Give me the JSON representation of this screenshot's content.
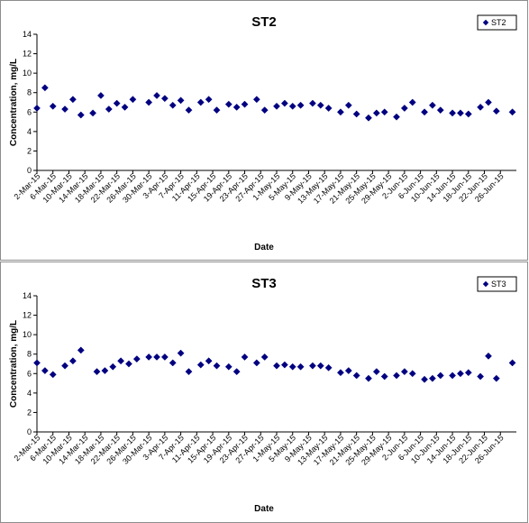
{
  "chart_data": [
    {
      "type": "scatter",
      "title": "ST2",
      "xlabel": "Date",
      "ylabel": "Concentration, mg/L",
      "ylim": [
        0,
        14
      ],
      "yticks": [
        0,
        2,
        4,
        6,
        8,
        10,
        12,
        14
      ],
      "grid": false,
      "legend_position": "top-right",
      "marker_color": "#000080",
      "x_tick_labels": [
        "2-Mar-15",
        "6-Mar-15",
        "10-Mar-15",
        "14-Mar-15",
        "18-Mar-15",
        "22-Mar-15",
        "26-Mar-15",
        "30-Mar-15",
        "3-Apr-15",
        "7-Apr-15",
        "11-Apr-15",
        "15-Apr-15",
        "19-Apr-15",
        "23-Apr-15",
        "27-Apr-15",
        "1-May-15",
        "5-May-15",
        "9-May-15",
        "13-May-15",
        "17-May-15",
        "21-May-15",
        "25-May-15",
        "29-May-15",
        "2-Jun-15",
        "6-Jun-15",
        "10-Jun-15",
        "14-Jun-15",
        "18-Jun-15",
        "22-Jun-15",
        "26-Jun-15"
      ],
      "xlim": [
        "2-Mar-15",
        "30-Jun-15"
      ],
      "series": [
        {
          "name": "ST2",
          "points": [
            {
              "x": "2-Mar-15",
              "y": 6.4
            },
            {
              "x": "4-Mar-15",
              "y": 8.5
            },
            {
              "x": "6-Mar-15",
              "y": 6.6
            },
            {
              "x": "9-Mar-15",
              "y": 6.3
            },
            {
              "x": "11-Mar-15",
              "y": 7.3
            },
            {
              "x": "13-Mar-15",
              "y": 5.7
            },
            {
              "x": "16-Mar-15",
              "y": 5.9
            },
            {
              "x": "18-Mar-15",
              "y": 7.7
            },
            {
              "x": "20-Mar-15",
              "y": 6.3
            },
            {
              "x": "22-Mar-15",
              "y": 6.9
            },
            {
              "x": "24-Mar-15",
              "y": 6.5
            },
            {
              "x": "26-Mar-15",
              "y": 7.3
            },
            {
              "x": "30-Mar-15",
              "y": 7.0
            },
            {
              "x": "1-Apr-15",
              "y": 7.7
            },
            {
              "x": "3-Apr-15",
              "y": 7.4
            },
            {
              "x": "5-Apr-15",
              "y": 6.7
            },
            {
              "x": "7-Apr-15",
              "y": 7.2
            },
            {
              "x": "9-Apr-15",
              "y": 6.2
            },
            {
              "x": "12-Apr-15",
              "y": 7.0
            },
            {
              "x": "14-Apr-15",
              "y": 7.3
            },
            {
              "x": "16-Apr-15",
              "y": 6.2
            },
            {
              "x": "19-Apr-15",
              "y": 6.8
            },
            {
              "x": "21-Apr-15",
              "y": 6.5
            },
            {
              "x": "23-Apr-15",
              "y": 6.8
            },
            {
              "x": "26-Apr-15",
              "y": 7.3
            },
            {
              "x": "28-Apr-15",
              "y": 6.2
            },
            {
              "x": "1-May-15",
              "y": 6.6
            },
            {
              "x": "3-May-15",
              "y": 6.9
            },
            {
              "x": "5-May-15",
              "y": 6.6
            },
            {
              "x": "7-May-15",
              "y": 6.7
            },
            {
              "x": "10-May-15",
              "y": 6.9
            },
            {
              "x": "12-May-15",
              "y": 6.7
            },
            {
              "x": "14-May-15",
              "y": 6.4
            },
            {
              "x": "17-May-15",
              "y": 6.0
            },
            {
              "x": "19-May-15",
              "y": 6.7
            },
            {
              "x": "21-May-15",
              "y": 5.8
            },
            {
              "x": "24-May-15",
              "y": 5.4
            },
            {
              "x": "26-May-15",
              "y": 5.9
            },
            {
              "x": "28-May-15",
              "y": 6.0
            },
            {
              "x": "31-May-15",
              "y": 5.5
            },
            {
              "x": "2-Jun-15",
              "y": 6.4
            },
            {
              "x": "4-Jun-15",
              "y": 7.0
            },
            {
              "x": "7-Jun-15",
              "y": 6.0
            },
            {
              "x": "9-Jun-15",
              "y": 6.7
            },
            {
              "x": "11-Jun-15",
              "y": 6.2
            },
            {
              "x": "14-Jun-15",
              "y": 5.9
            },
            {
              "x": "16-Jun-15",
              "y": 5.9
            },
            {
              "x": "18-Jun-15",
              "y": 5.8
            },
            {
              "x": "21-Jun-15",
              "y": 6.5
            },
            {
              "x": "23-Jun-15",
              "y": 7.0
            },
            {
              "x": "25-Jun-15",
              "y": 6.1
            },
            {
              "x": "29-Jun-15",
              "y": 6.0
            }
          ]
        }
      ]
    },
    {
      "type": "scatter",
      "title": "ST3",
      "xlabel": "Date",
      "ylabel": "Concentration, mg/L",
      "ylim": [
        0,
        14
      ],
      "yticks": [
        0,
        2,
        4,
        6,
        8,
        10,
        12,
        14
      ],
      "grid": false,
      "legend_position": "top-right",
      "marker_color": "#000080",
      "x_tick_labels": [
        "2-Mar-15",
        "6-Mar-15",
        "10-Mar-15",
        "14-Mar-15",
        "18-Mar-15",
        "22-Mar-15",
        "26-Mar-15",
        "30-Mar-15",
        "3-Apr-15",
        "7-Apr-15",
        "11-Apr-15",
        "15-Apr-15",
        "19-Apr-15",
        "23-Apr-15",
        "27-Apr-15",
        "1-May-15",
        "5-May-15",
        "9-May-15",
        "13-May-15",
        "17-May-15",
        "21-May-15",
        "25-May-15",
        "29-May-15",
        "2-Jun-15",
        "6-Jun-15",
        "10-Jun-15",
        "14-Jun-15",
        "18-Jun-15",
        "22-Jun-15",
        "26-Jun-15"
      ],
      "xlim": [
        "2-Mar-15",
        "30-Jun-15"
      ],
      "series": [
        {
          "name": "ST3",
          "points": [
            {
              "x": "2-Mar-15",
              "y": 7.1
            },
            {
              "x": "4-Mar-15",
              "y": 6.3
            },
            {
              "x": "6-Mar-15",
              "y": 5.9
            },
            {
              "x": "9-Mar-15",
              "y": 6.8
            },
            {
              "x": "11-Mar-15",
              "y": 7.3
            },
            {
              "x": "13-Mar-15",
              "y": 8.4
            },
            {
              "x": "17-Mar-15",
              "y": 6.2
            },
            {
              "x": "19-Mar-15",
              "y": 6.3
            },
            {
              "x": "21-Mar-15",
              "y": 6.7
            },
            {
              "x": "23-Mar-15",
              "y": 7.3
            },
            {
              "x": "25-Mar-15",
              "y": 7.0
            },
            {
              "x": "27-Mar-15",
              "y": 7.5
            },
            {
              "x": "30-Mar-15",
              "y": 7.7
            },
            {
              "x": "1-Apr-15",
              "y": 7.7
            },
            {
              "x": "3-Apr-15",
              "y": 7.7
            },
            {
              "x": "5-Apr-15",
              "y": 7.1
            },
            {
              "x": "7-Apr-15",
              "y": 8.1
            },
            {
              "x": "9-Apr-15",
              "y": 6.2
            },
            {
              "x": "12-Apr-15",
              "y": 6.9
            },
            {
              "x": "14-Apr-15",
              "y": 7.3
            },
            {
              "x": "16-Apr-15",
              "y": 6.8
            },
            {
              "x": "19-Apr-15",
              "y": 6.7
            },
            {
              "x": "21-Apr-15",
              "y": 6.2
            },
            {
              "x": "23-Apr-15",
              "y": 7.7
            },
            {
              "x": "26-Apr-15",
              "y": 7.1
            },
            {
              "x": "28-Apr-15",
              "y": 7.7
            },
            {
              "x": "1-May-15",
              "y": 6.8
            },
            {
              "x": "3-May-15",
              "y": 6.9
            },
            {
              "x": "5-May-15",
              "y": 6.7
            },
            {
              "x": "7-May-15",
              "y": 6.7
            },
            {
              "x": "10-May-15",
              "y": 6.8
            },
            {
              "x": "12-May-15",
              "y": 6.8
            },
            {
              "x": "14-May-15",
              "y": 6.6
            },
            {
              "x": "17-May-15",
              "y": 6.1
            },
            {
              "x": "19-May-15",
              "y": 6.3
            },
            {
              "x": "21-May-15",
              "y": 5.8
            },
            {
              "x": "24-May-15",
              "y": 5.5
            },
            {
              "x": "26-May-15",
              "y": 6.2
            },
            {
              "x": "28-May-15",
              "y": 5.7
            },
            {
              "x": "31-May-15",
              "y": 5.8
            },
            {
              "x": "2-Jun-15",
              "y": 6.2
            },
            {
              "x": "4-Jun-15",
              "y": 6.0
            },
            {
              "x": "7-Jun-15",
              "y": 5.4
            },
            {
              "x": "9-Jun-15",
              "y": 5.5
            },
            {
              "x": "11-Jun-15",
              "y": 5.8
            },
            {
              "x": "14-Jun-15",
              "y": 5.8
            },
            {
              "x": "16-Jun-15",
              "y": 6.0
            },
            {
              "x": "18-Jun-15",
              "y": 6.1
            },
            {
              "x": "21-Jun-15",
              "y": 5.7
            },
            {
              "x": "23-Jun-15",
              "y": 7.8
            },
            {
              "x": "25-Jun-15",
              "y": 5.5
            },
            {
              "x": "29-Jun-15",
              "y": 7.1
            }
          ]
        }
      ]
    }
  ]
}
